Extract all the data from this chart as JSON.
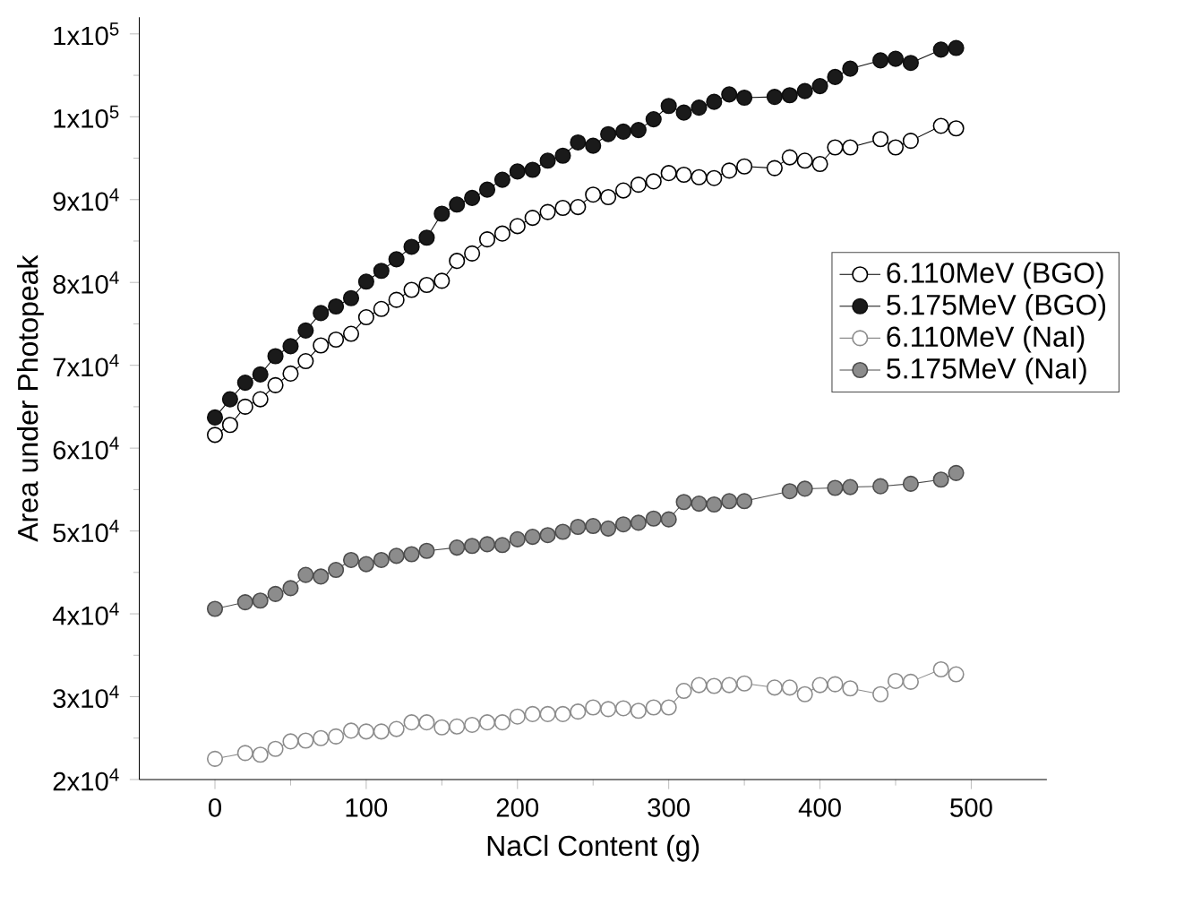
{
  "chart_data": {
    "type": "line",
    "xlabel": "NaCl Content (g)",
    "ylabel": "Area under Photopeak",
    "xlim": [
      -50,
      550
    ],
    "xticks": [
      0,
      100,
      200,
      300,
      400,
      500
    ],
    "ylim": [
      20000,
      112000
    ],
    "yticks": [
      {
        "value": 20000,
        "label": "2x10$^{4}$"
      },
      {
        "value": 30000,
        "label": "3x10$^{4}$"
      },
      {
        "value": 40000,
        "label": "4x10$^{4}$"
      },
      {
        "value": 50000,
        "label": "5x10$^{4}$"
      },
      {
        "value": 60000,
        "label": "6x10$^{4}$"
      },
      {
        "value": 70000,
        "label": "7x10$^{4}$"
      },
      {
        "value": 80000,
        "label": "8x10$^{4}$"
      },
      {
        "value": 90000,
        "label": "9x10$^{4}$"
      },
      {
        "value": 100000,
        "label": "1x10$^{5}$"
      },
      {
        "value": 110000,
        "label": "1x10$^{5}$"
      }
    ],
    "marker": "circle",
    "legend": "right",
    "grid": false,
    "series": [
      {
        "name": "6.110MeV (BGO)",
        "color": "#ffffff",
        "x": [
          0,
          10,
          20,
          30,
          40,
          50,
          60,
          70,
          80,
          90,
          100,
          110,
          120,
          130,
          140,
          150,
          160,
          170,
          180,
          190,
          200,
          210,
          220,
          230,
          240,
          250,
          260,
          270,
          280,
          290,
          300,
          310,
          320,
          330,
          340,
          350,
          370,
          380,
          390,
          400,
          410,
          420,
          440,
          450,
          460,
          480,
          490
        ],
        "values": [
          61600,
          62800,
          65000,
          65900,
          67600,
          69000,
          70500,
          72400,
          73100,
          73800,
          75800,
          76800,
          77900,
          79100,
          79700,
          80200,
          82600,
          83500,
          85200,
          85900,
          86800,
          87800,
          88500,
          89000,
          89100,
          90600,
          90300,
          91100,
          91800,
          92200,
          93200,
          93000,
          92700,
          92600,
          93500,
          94000,
          93800,
          95100,
          94700,
          94300,
          96300,
          96300,
          97300,
          96300,
          97100,
          98900,
          98600
        ]
      },
      {
        "name": "5.175MeV (BGO)",
        "color": "#1a1a1a",
        "x": [
          0,
          10,
          20,
          30,
          40,
          50,
          60,
          70,
          80,
          90,
          100,
          110,
          120,
          130,
          140,
          150,
          160,
          170,
          180,
          190,
          200,
          210,
          220,
          230,
          240,
          250,
          260,
          270,
          280,
          290,
          300,
          310,
          320,
          330,
          340,
          350,
          370,
          380,
          390,
          400,
          410,
          420,
          440,
          450,
          460,
          480,
          490
        ],
        "values": [
          63700,
          65900,
          67900,
          68900,
          71100,
          72300,
          74200,
          76300,
          77100,
          78100,
          80100,
          81400,
          82800,
          84300,
          85400,
          88300,
          89400,
          90200,
          91200,
          92400,
          93400,
          93600,
          94700,
          95300,
          96900,
          96500,
          97900,
          98200,
          98400,
          99700,
          101300,
          100500,
          101100,
          101800,
          102700,
          102300,
          102400,
          102600,
          103100,
          103700,
          104800,
          105800,
          106800,
          107000,
          106500,
          108100,
          108300
        ]
      },
      {
        "name": "6.110MeV (NaI)",
        "color": "#ffffff",
        "x": [
          0,
          20,
          30,
          40,
          50,
          60,
          70,
          80,
          90,
          100,
          110,
          120,
          130,
          140,
          150,
          160,
          170,
          180,
          190,
          200,
          210,
          220,
          230,
          240,
          250,
          260,
          270,
          280,
          290,
          300,
          310,
          320,
          330,
          340,
          350,
          370,
          380,
          390,
          400,
          410,
          420,
          440,
          450,
          460,
          480,
          490
        ],
        "values": [
          22500,
          23200,
          23000,
          23700,
          24600,
          24700,
          25000,
          25200,
          25900,
          25800,
          25800,
          26100,
          26900,
          26900,
          26300,
          26400,
          26600,
          26900,
          26900,
          27600,
          27900,
          27900,
          27900,
          28200,
          28700,
          28500,
          28600,
          28300,
          28700,
          28700,
          30700,
          31400,
          31300,
          31400,
          31600,
          31100,
          31100,
          30300,
          31400,
          31500,
          31000,
          30300,
          31900,
          31800,
          33300,
          32700
        ]
      },
      {
        "name": "5.175MeV (NaI)",
        "color": "#8c8c8c",
        "x": [
          0,
          20,
          30,
          40,
          50,
          60,
          70,
          80,
          90,
          100,
          110,
          120,
          130,
          140,
          160,
          170,
          180,
          190,
          200,
          210,
          220,
          230,
          240,
          250,
          260,
          270,
          280,
          290,
          300,
          310,
          320,
          330,
          340,
          350,
          380,
          390,
          410,
          420,
          440,
          460,
          480,
          490
        ],
        "values": [
          40600,
          41400,
          41600,
          42400,
          43100,
          44700,
          44500,
          45300,
          46500,
          46000,
          46500,
          47000,
          47200,
          47600,
          48000,
          48200,
          48400,
          48300,
          49000,
          49300,
          49500,
          49900,
          50500,
          50600,
          50300,
          50800,
          51000,
          51500,
          51400,
          53500,
          53300,
          53200,
          53600,
          53600,
          54800,
          55100,
          55200,
          55300,
          55400,
          55700,
          56200,
          57000
        ]
      }
    ]
  }
}
